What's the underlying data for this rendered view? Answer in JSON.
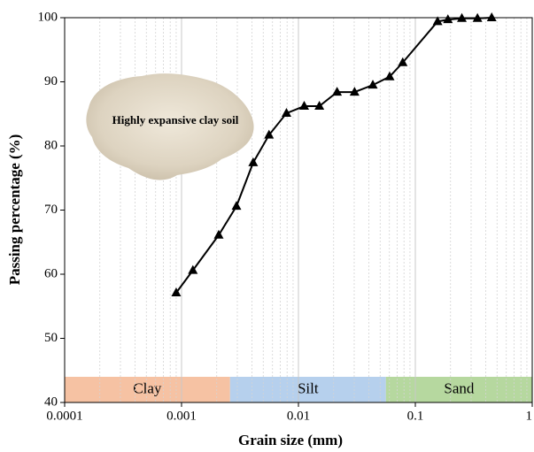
{
  "chart_data": {
    "type": "line",
    "x_label": "Grain size (mm)",
    "y_label": "Passing percentage (%)",
    "annotation": "Highly expansive clay soil",
    "x": [
      0.0009,
      0.00125,
      0.00208,
      0.00295,
      0.0041,
      0.0056,
      0.0079,
      0.0112,
      0.0151,
      0.0214,
      0.0302,
      0.0433,
      0.0603,
      0.078,
      0.155,
      0.19,
      0.25,
      0.34,
      0.45
    ],
    "series": [
      {
        "name": null,
        "color": "#000000",
        "values": [
          57.1,
          60.6,
          66.1,
          70.6,
          77.4,
          81.7,
          85.1,
          86.2,
          86.2,
          88.4,
          88.4,
          89.5,
          90.8,
          93.0,
          99.4,
          99.7,
          99.9,
          99.9,
          100
        ]
      }
    ],
    "zones": [
      {
        "label": "Clay",
        "from": 0.0001,
        "to": 0.0026,
        "color": "#f5b793"
      },
      {
        "label": "Silt",
        "from": 0.0026,
        "to": 0.056,
        "color": "#a9c8ea"
      },
      {
        "label": "Sand",
        "from": 0.056,
        "to": 1,
        "color": "#a9d18e"
      }
    ],
    "zone_ylim": [
      40,
      44
    ],
    "xlim": [
      0.0001,
      1
    ],
    "xticks": [
      0.0001,
      0.001,
      0.01,
      0.1,
      1
    ],
    "log_x": true,
    "ylim": [
      40,
      100
    ],
    "yticks": [
      40,
      50,
      60,
      70,
      80,
      90,
      100
    ],
    "grid": true
  }
}
